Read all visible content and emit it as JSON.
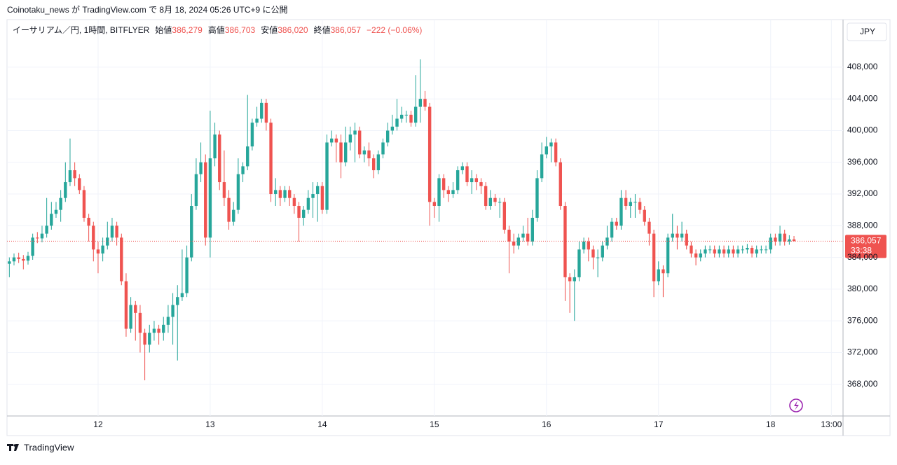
{
  "header": "Coinotaku_news が TradingView.com で 8月 18, 2024 05:26 UTC+9 に公開",
  "footer": "TradingView",
  "chart_data": {
    "type": "candlestick",
    "legend": {
      "name": "イーサリアム／円, 1時間, BITFLYER",
      "fields": [
        {
          "label": "始値",
          "text": "386,279"
        },
        {
          "label": "高値",
          "text": "386,703"
        },
        {
          "label": "安値",
          "text": "386,020"
        },
        {
          "label": "終値",
          "text": "386,057"
        }
      ],
      "change": "−222 (−0.06%)"
    },
    "currency": "JPY",
    "price_tag": {
      "price": "386,057",
      "countdown": "33:38"
    },
    "up_color": "#26a69a",
    "down_color": "#ef5350",
    "grid": true,
    "xlim": [
      -0.5,
      178.5
    ],
    "xticks": [
      {
        "value": 19,
        "label": "12"
      },
      {
        "value": 43,
        "label": "13"
      },
      {
        "value": 67,
        "label": "14"
      },
      {
        "value": 91,
        "label": "15"
      },
      {
        "value": 115,
        "label": "16"
      },
      {
        "value": 139,
        "label": "17"
      },
      {
        "value": 163,
        "label": "18"
      },
      {
        "value": 176,
        "label": "13:00"
      }
    ],
    "ylim": [
      364000,
      414000
    ],
    "yticks": [
      {
        "value": 368000,
        "label": "368,000"
      },
      {
        "value": 372000,
        "label": "372,000"
      },
      {
        "value": 376000,
        "label": "376,000"
      },
      {
        "value": 380000,
        "label": "380,000"
      },
      {
        "value": 384000,
        "label": "384,000"
      },
      {
        "value": 388000,
        "label": "388,000"
      },
      {
        "value": 392000,
        "label": "392,000"
      },
      {
        "value": 396000,
        "label": "396,000"
      },
      {
        "value": 400000,
        "label": "400,000"
      },
      {
        "value": 404000,
        "label": "404,000"
      },
      {
        "value": 408000,
        "label": "408,000"
      }
    ],
    "open": [
      383200,
      383500,
      384000,
      383800,
      383600,
      384200,
      386500,
      386400,
      387000,
      388000,
      389500,
      390000,
      391500,
      393500,
      395000,
      394000,
      392500,
      389000,
      388000,
      385000,
      384500,
      385500,
      386500,
      388000,
      386500,
      381000,
      375000,
      378000,
      377000,
      374500,
      373000,
      374500,
      375000,
      374500,
      375500,
      376500,
      378000,
      379000,
      379500,
      384000,
      390500,
      394500,
      396000,
      386500,
      396500,
      399500,
      393500,
      391500,
      388500,
      390000,
      394500,
      395500,
      398000,
      401000,
      401500,
      403500,
      401000,
      392000,
      392500,
      391500,
      392500,
      391500,
      390500,
      389000,
      390000,
      391500,
      392000,
      393000,
      390000,
      398500,
      399000,
      398500,
      396000,
      398500,
      399500,
      400000,
      397000,
      397500,
      396500,
      395000,
      397000,
      398500,
      400000,
      400500,
      401500,
      402000,
      402000,
      401000,
      403000,
      404000,
      403000,
      391000,
      390500,
      394000,
      392500,
      392000,
      392500,
      395000,
      395500,
      393500,
      394000,
      393500,
      393000,
      390500,
      391500,
      391000,
      391000,
      387500,
      386000,
      385500,
      386500,
      387000,
      386000,
      389000,
      394000,
      397000,
      398000,
      398500,
      396000,
      390500,
      381500,
      381000,
      381500,
      385000,
      386000,
      385000,
      384000,
      384000,
      385500,
      386500,
      388500,
      388000,
      391500,
      390500,
      391000,
      391000,
      390000,
      388500,
      387000,
      381000,
      382500,
      382000,
      386500,
      387000,
      386500,
      387000,
      385500,
      384500,
      384000,
      384500,
      385000,
      385000,
      384500,
      385000,
      384500,
      385000,
      384500,
      385000,
      385000,
      385200,
      384500,
      385000,
      385000,
      385000,
      386500,
      386000,
      387000,
      386000,
      386279
    ],
    "high": [
      384000,
      384500,
      384600,
      384300,
      384700,
      387000,
      387200,
      388000,
      391500,
      391000,
      391000,
      392500,
      396000,
      399000,
      396000,
      394500,
      393000,
      389500,
      388500,
      386000,
      386500,
      388500,
      389000,
      388500,
      387000,
      382000,
      379000,
      378500,
      378000,
      375000,
      375500,
      376000,
      375500,
      376500,
      378000,
      379500,
      380500,
      385000,
      385500,
      392000,
      396500,
      398500,
      397000,
      402500,
      401000,
      400000,
      397500,
      392500,
      391000,
      396500,
      396000,
      404500,
      401500,
      403000,
      404000,
      404000,
      401500,
      394000,
      393000,
      393000,
      393000,
      392000,
      391000,
      390500,
      392500,
      393500,
      393500,
      393500,
      399500,
      400000,
      399500,
      399500,
      400500,
      400500,
      401000,
      400500,
      398000,
      398500,
      397000,
      397500,
      399000,
      401000,
      402000,
      404000,
      403000,
      402500,
      402500,
      407000,
      409000,
      405000,
      403500,
      391500,
      394500,
      394500,
      393000,
      393500,
      395500,
      396000,
      396000,
      395000,
      394500,
      394000,
      393500,
      392500,
      392000,
      391500,
      391500,
      388000,
      387000,
      387000,
      388000,
      389000,
      390000,
      395000,
      398500,
      399200,
      399000,
      399000,
      396500,
      391000,
      382000,
      382500,
      386000,
      386500,
      386500,
      385500,
      385000,
      386000,
      388000,
      389000,
      389000,
      392500,
      392500,
      391500,
      392000,
      391500,
      390500,
      389000,
      387500,
      383500,
      383000,
      387000,
      389500,
      388000,
      388500,
      387500,
      386000,
      385000,
      385000,
      385500,
      385500,
      385500,
      385500,
      385500,
      385500,
      385500,
      385500,
      385500,
      385700,
      385500,
      385500,
      385500,
      385500,
      387000,
      387000,
      388000,
      387500,
      386800,
      386703
    ],
    "low": [
      381500,
      383000,
      383300,
      382500,
      383100,
      383700,
      385800,
      385900,
      386500,
      387500,
      389000,
      388500,
      391000,
      393000,
      393000,
      392000,
      388500,
      386000,
      383500,
      382000,
      383500,
      385000,
      386000,
      385500,
      380500,
      374000,
      374500,
      373500,
      372000,
      368500,
      372000,
      373500,
      373000,
      373500,
      374500,
      373000,
      371000,
      378500,
      379000,
      383500,
      390000,
      393500,
      385500,
      384000,
      395500,
      392500,
      390500,
      387500,
      388000,
      389500,
      393500,
      395000,
      397500,
      400500,
      401000,
      400000,
      391000,
      390500,
      390500,
      391000,
      390500,
      389500,
      386000,
      388000,
      389500,
      389000,
      388500,
      389500,
      389500,
      398000,
      396000,
      394000,
      395500,
      397500,
      396000,
      396500,
      396000,
      395500,
      394000,
      394500,
      396500,
      398000,
      399500,
      400000,
      401000,
      401000,
      400500,
      400500,
      401000,
      402500,
      388000,
      389000,
      388500,
      391500,
      391000,
      391500,
      392000,
      394500,
      393000,
      392000,
      392500,
      392000,
      390000,
      390000,
      390500,
      389000,
      387000,
      382000,
      384500,
      385000,
      386000,
      385500,
      385500,
      388500,
      393500,
      396500,
      396000,
      395500,
      390000,
      378500,
      377000,
      376000,
      381000,
      384500,
      383500,
      382500,
      381500,
      383500,
      385000,
      386000,
      387500,
      387500,
      390000,
      389000,
      389000,
      389500,
      388000,
      385500,
      379000,
      380500,
      379000,
      381500,
      386000,
      385000,
      386000,
      385000,
      384000,
      383000,
      383500,
      384000,
      384500,
      384000,
      384000,
      384000,
      384000,
      384000,
      384000,
      384500,
      384500,
      384000,
      384000,
      384500,
      384500,
      384500,
      385500,
      385500,
      385500,
      385600,
      386020
    ],
    "close": [
      383500,
      384000,
      383800,
      383600,
      384200,
      386500,
      386400,
      387000,
      388000,
      389500,
      390000,
      391500,
      393500,
      395000,
      394000,
      392500,
      389000,
      388000,
      385000,
      384500,
      385500,
      386500,
      388000,
      386500,
      381000,
      375000,
      378000,
      377000,
      374500,
      373000,
      374500,
      375000,
      374500,
      375500,
      376500,
      378000,
      379000,
      379500,
      384000,
      390500,
      394500,
      396000,
      386500,
      396500,
      399500,
      393500,
      391500,
      388500,
      390000,
      394500,
      395500,
      398000,
      401000,
      401500,
      403500,
      401000,
      392000,
      392500,
      391500,
      392500,
      391500,
      390500,
      389000,
      390000,
      391500,
      392000,
      393000,
      390000,
      398500,
      399000,
      398500,
      396000,
      398500,
      399500,
      400000,
      397000,
      397500,
      396500,
      395000,
      397000,
      398500,
      400000,
      400500,
      401500,
      402000,
      402000,
      401000,
      403000,
      404000,
      403000,
      391000,
      390500,
      394000,
      392500,
      392000,
      392500,
      395000,
      395500,
      393500,
      394000,
      393500,
      393000,
      390500,
      391500,
      391000,
      391000,
      387500,
      386000,
      385500,
      386500,
      387000,
      386000,
      389000,
      394000,
      397000,
      398000,
      398500,
      396000,
      390500,
      381500,
      381000,
      381500,
      385000,
      386000,
      385000,
      384000,
      384000,
      385500,
      386500,
      388500,
      388000,
      391500,
      390500,
      391000,
      391000,
      390000,
      388500,
      387000,
      381000,
      382500,
      382000,
      386500,
      387000,
      386500,
      387000,
      385500,
      384500,
      384000,
      384500,
      385000,
      385000,
      384500,
      385000,
      384500,
      385000,
      384500,
      385000,
      385000,
      385200,
      384500,
      385000,
      385000,
      385000,
      386500,
      386000,
      387000,
      386000,
      386279,
      386057
    ]
  }
}
